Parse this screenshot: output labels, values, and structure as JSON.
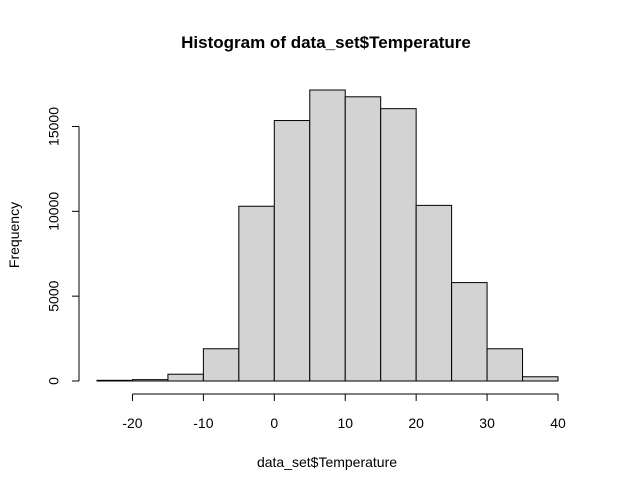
{
  "chart_data": {
    "type": "bar",
    "title": "Histogram of data_set$Temperature",
    "xlabel": "data_set$Temperature",
    "ylabel": "Frequency",
    "bins": [
      {
        "x0": -25,
        "x1": -20,
        "value": 40
      },
      {
        "x0": -20,
        "x1": -15,
        "value": 80
      },
      {
        "x0": -15,
        "x1": -10,
        "value": 400
      },
      {
        "x0": -10,
        "x1": -5,
        "value": 1900
      },
      {
        "x0": -5,
        "x1": 0,
        "value": 10300
      },
      {
        "x0": 0,
        "x1": 5,
        "value": 15350
      },
      {
        "x0": 5,
        "x1": 10,
        "value": 17150
      },
      {
        "x0": 10,
        "x1": 15,
        "value": 16750
      },
      {
        "x0": 15,
        "x1": 20,
        "value": 16050
      },
      {
        "x0": 20,
        "x1": 25,
        "value": 10350
      },
      {
        "x0": 25,
        "x1": 30,
        "value": 5800
      },
      {
        "x0": 30,
        "x1": 35,
        "value": 1900
      },
      {
        "x0": 35,
        "x1": 40,
        "value": 250
      }
    ],
    "xlim": [
      -25,
      40
    ],
    "ylim": [
      0,
      17150
    ],
    "x_ticks": [
      {
        "value": -20,
        "label": "-20"
      },
      {
        "value": -10,
        "label": "-10"
      },
      {
        "value": 0,
        "label": "0"
      },
      {
        "value": 10,
        "label": "10"
      },
      {
        "value": 20,
        "label": "20"
      },
      {
        "value": 30,
        "label": "30"
      },
      {
        "value": 40,
        "label": "40"
      }
    ],
    "y_ticks": [
      {
        "value": 0,
        "label": "0"
      },
      {
        "value": 5000,
        "label": "5000"
      },
      {
        "value": 10000,
        "label": "10000"
      },
      {
        "value": 15000,
        "label": "15000"
      }
    ],
    "bar_color": "#d3d3d3",
    "border_color": "#000000",
    "grid": false,
    "legend": "none"
  }
}
